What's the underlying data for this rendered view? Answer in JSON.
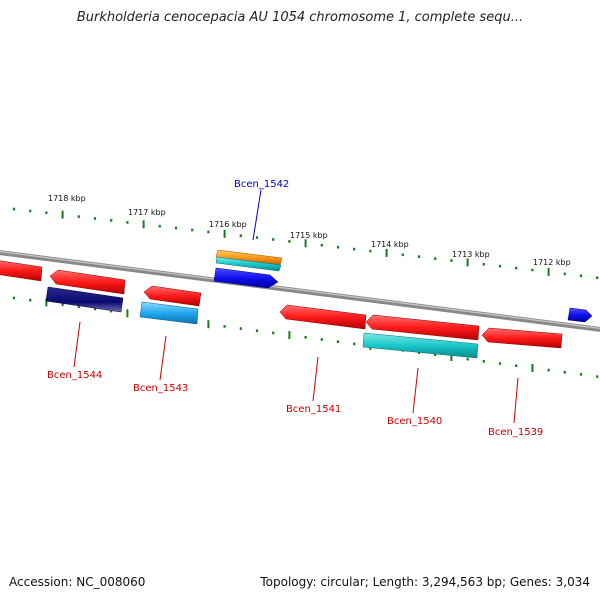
{
  "header": {
    "title": "Burkholderia cenocepacia AU 1054 chromosome 1, complete sequ..."
  },
  "footer": {
    "accession": "Accession: NC_008060",
    "summary": "Topology: circular; Length: 3,294,563 bp; Genes: 3,034"
  },
  "kbp_ticks": [
    {
      "label": "1718 kbp"
    },
    {
      "label": "1717 kbp"
    },
    {
      "label": "1716 kbp"
    },
    {
      "label": "1715 kbp"
    },
    {
      "label": "1714 kbp"
    },
    {
      "label": "1713 kbp"
    },
    {
      "label": "1712 kbp"
    }
  ],
  "gene_labels": [
    {
      "name": "Bcen_1542",
      "color": "#0000cc"
    },
    {
      "name": "Bcen_1544",
      "color": "#cc0000"
    },
    {
      "name": "Bcen_1543",
      "color": "#cc0000"
    },
    {
      "name": "Bcen_1541",
      "color": "#cc0000"
    },
    {
      "name": "Bcen_1540",
      "color": "#cc0000"
    },
    {
      "name": "Bcen_1539",
      "color": "#cc0000"
    }
  ],
  "colors": {
    "backbone": "#8a8a8a",
    "tick": "#1a7a1a",
    "cds_red": "#ff1a1a",
    "cds_blue": "#1010ee",
    "cds_navy": "#0a0a6e",
    "cds_cyan": "#19c8c8",
    "cds_skyblue": "#22aaee",
    "cds_orange": "#ff9a1a"
  }
}
